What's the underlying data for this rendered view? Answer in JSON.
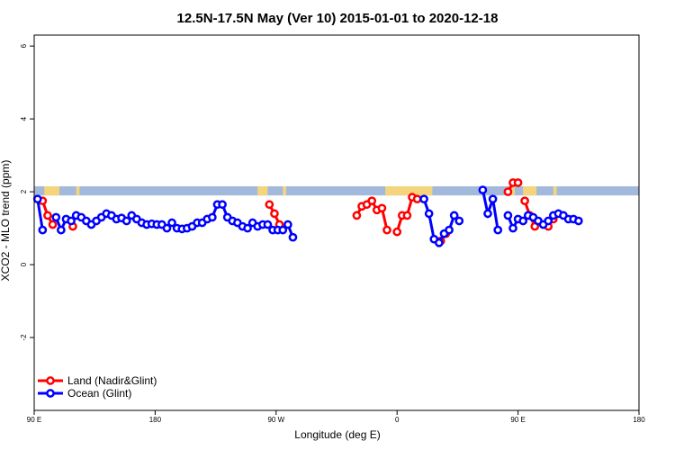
{
  "chart_data": {
    "type": "line",
    "title": "12.5N-17.5N May (Ver 10)   2015-01-01 to 2020-12-18",
    "xlabel": "Longitude (deg E)",
    "ylabel": "XCO2 - MLO trend (ppm)",
    "xlim": [
      90,
      450
    ],
    "ylim": [
      -4,
      6.3
    ],
    "x_ticks": [
      {
        "value": 90,
        "label": "90 E"
      },
      {
        "value": 162,
        "label": "180"
      },
      {
        "value": 234,
        "label": "90 W"
      },
      {
        "value": 306,
        "label": "0"
      },
      {
        "value": 378,
        "label": "90 E"
      },
      {
        "value": 450,
        "label": "180"
      }
    ],
    "y_ticks": [
      {
        "value": -2,
        "label": "-2"
      },
      {
        "value": 0,
        "label": "0"
      },
      {
        "value": 2,
        "label": "2"
      },
      {
        "value": 4,
        "label": "4"
      },
      {
        "value": 6,
        "label": "6"
      }
    ],
    "land_band": {
      "y_range": [
        1.9,
        2.15
      ],
      "ocean_color": "#a3b9dc",
      "land_color": "#f4d57c",
      "land_segments_x": [
        [
          96,
          105
        ],
        [
          115,
          117
        ],
        [
          223,
          229
        ],
        [
          238,
          240
        ],
        [
          299,
          327
        ],
        [
          374,
          376
        ],
        [
          381,
          389
        ],
        [
          399,
          401
        ]
      ]
    },
    "legend": {
      "position": "bottom-left"
    },
    "series": [
      {
        "name": "Land (Nadir&Glint)",
        "color": "#ff0000",
        "segments": [
          [
            [
              95,
              1.75
            ],
            [
              98,
              1.35
            ],
            [
              101,
              1.1
            ]
          ],
          [
            [
              113,
              1.05
            ]
          ],
          [
            [
              230,
              1.65
            ],
            [
              233,
              1.4
            ],
            [
              236,
              1.1
            ]
          ],
          [
            [
              282,
              1.35
            ],
            [
              285,
              1.6
            ],
            [
              288,
              1.65
            ],
            [
              291,
              1.75
            ],
            [
              294,
              1.5
            ],
            [
              297,
              1.55
            ],
            [
              300,
              0.95
            ]
          ],
          [
            [
              306,
              0.9
            ],
            [
              309,
              1.35
            ],
            [
              312,
              1.35
            ],
            [
              315,
              1.85
            ],
            [
              318,
              1.8
            ]
          ],
          [
            [
              332,
              0.65
            ],
            [
              335,
              0.85
            ]
          ],
          [
            [
              372,
              2.0
            ],
            [
              375,
              2.25
            ],
            [
              378,
              2.25
            ]
          ],
          [
            [
              382,
              1.75
            ],
            [
              385,
              1.35
            ],
            [
              388,
              1.05
            ]
          ],
          [
            [
              396,
              1.05
            ],
            [
              399,
              1.25
            ]
          ]
        ]
      },
      {
        "name": "Ocean (Glint)",
        "color": "#0000ff",
        "segments": [
          [
            [
              92,
              1.8
            ],
            [
              95,
              0.95
            ]
          ],
          [
            [
              103,
              1.3
            ],
            [
              106,
              0.95
            ],
            [
              109,
              1.25
            ],
            [
              112,
              1.2
            ],
            [
              115,
              1.35
            ],
            [
              118,
              1.3
            ],
            [
              121,
              1.2
            ],
            [
              124,
              1.1
            ],
            [
              127,
              1.2
            ],
            [
              130,
              1.3
            ],
            [
              133,
              1.4
            ],
            [
              136,
              1.35
            ],
            [
              139,
              1.25
            ],
            [
              142,
              1.28
            ],
            [
              145,
              1.2
            ],
            [
              148,
              1.35
            ],
            [
              151,
              1.25
            ],
            [
              154,
              1.15
            ],
            [
              157,
              1.1
            ],
            [
              160,
              1.12
            ],
            [
              163,
              1.1
            ],
            [
              166,
              1.1
            ],
            [
              169,
              1.0
            ],
            [
              172,
              1.15
            ],
            [
              175,
              1.0
            ],
            [
              178,
              0.98
            ],
            [
              181,
              1.0
            ],
            [
              184,
              1.05
            ],
            [
              187,
              1.15
            ],
            [
              190,
              1.15
            ],
            [
              193,
              1.25
            ],
            [
              196,
              1.3
            ],
            [
              199,
              1.65
            ],
            [
              202,
              1.65
            ],
            [
              205,
              1.3
            ],
            [
              208,
              1.2
            ],
            [
              211,
              1.15
            ],
            [
              214,
              1.05
            ],
            [
              217,
              1.0
            ],
            [
              220,
              1.15
            ],
            [
              223,
              1.05
            ],
            [
              226,
              1.1
            ],
            [
              229,
              1.1
            ],
            [
              232,
              0.95
            ],
            [
              235,
              0.95
            ],
            [
              238,
              0.95
            ],
            [
              241,
              1.1
            ],
            [
              244,
              0.75
            ]
          ],
          [
            [
              322,
              1.8
            ],
            [
              325,
              1.4
            ],
            [
              328,
              0.7
            ],
            [
              331,
              0.6
            ],
            [
              334,
              0.85
            ],
            [
              337,
              0.95
            ],
            [
              340,
              1.35
            ],
            [
              343,
              1.2
            ]
          ],
          [
            [
              357,
              2.05
            ],
            [
              360,
              1.4
            ],
            [
              363,
              1.8
            ],
            [
              366,
              0.95
            ]
          ],
          [
            [
              372,
              1.35
            ],
            [
              375,
              1.0
            ],
            [
              378,
              1.25
            ],
            [
              381,
              1.2
            ],
            [
              384,
              1.35
            ],
            [
              387,
              1.3
            ],
            [
              390,
              1.2
            ],
            [
              393,
              1.1
            ],
            [
              396,
              1.2
            ],
            [
              399,
              1.35
            ],
            [
              402,
              1.4
            ],
            [
              405,
              1.35
            ],
            [
              408,
              1.25
            ],
            [
              411,
              1.25
            ],
            [
              414,
              1.2
            ]
          ]
        ]
      }
    ]
  }
}
